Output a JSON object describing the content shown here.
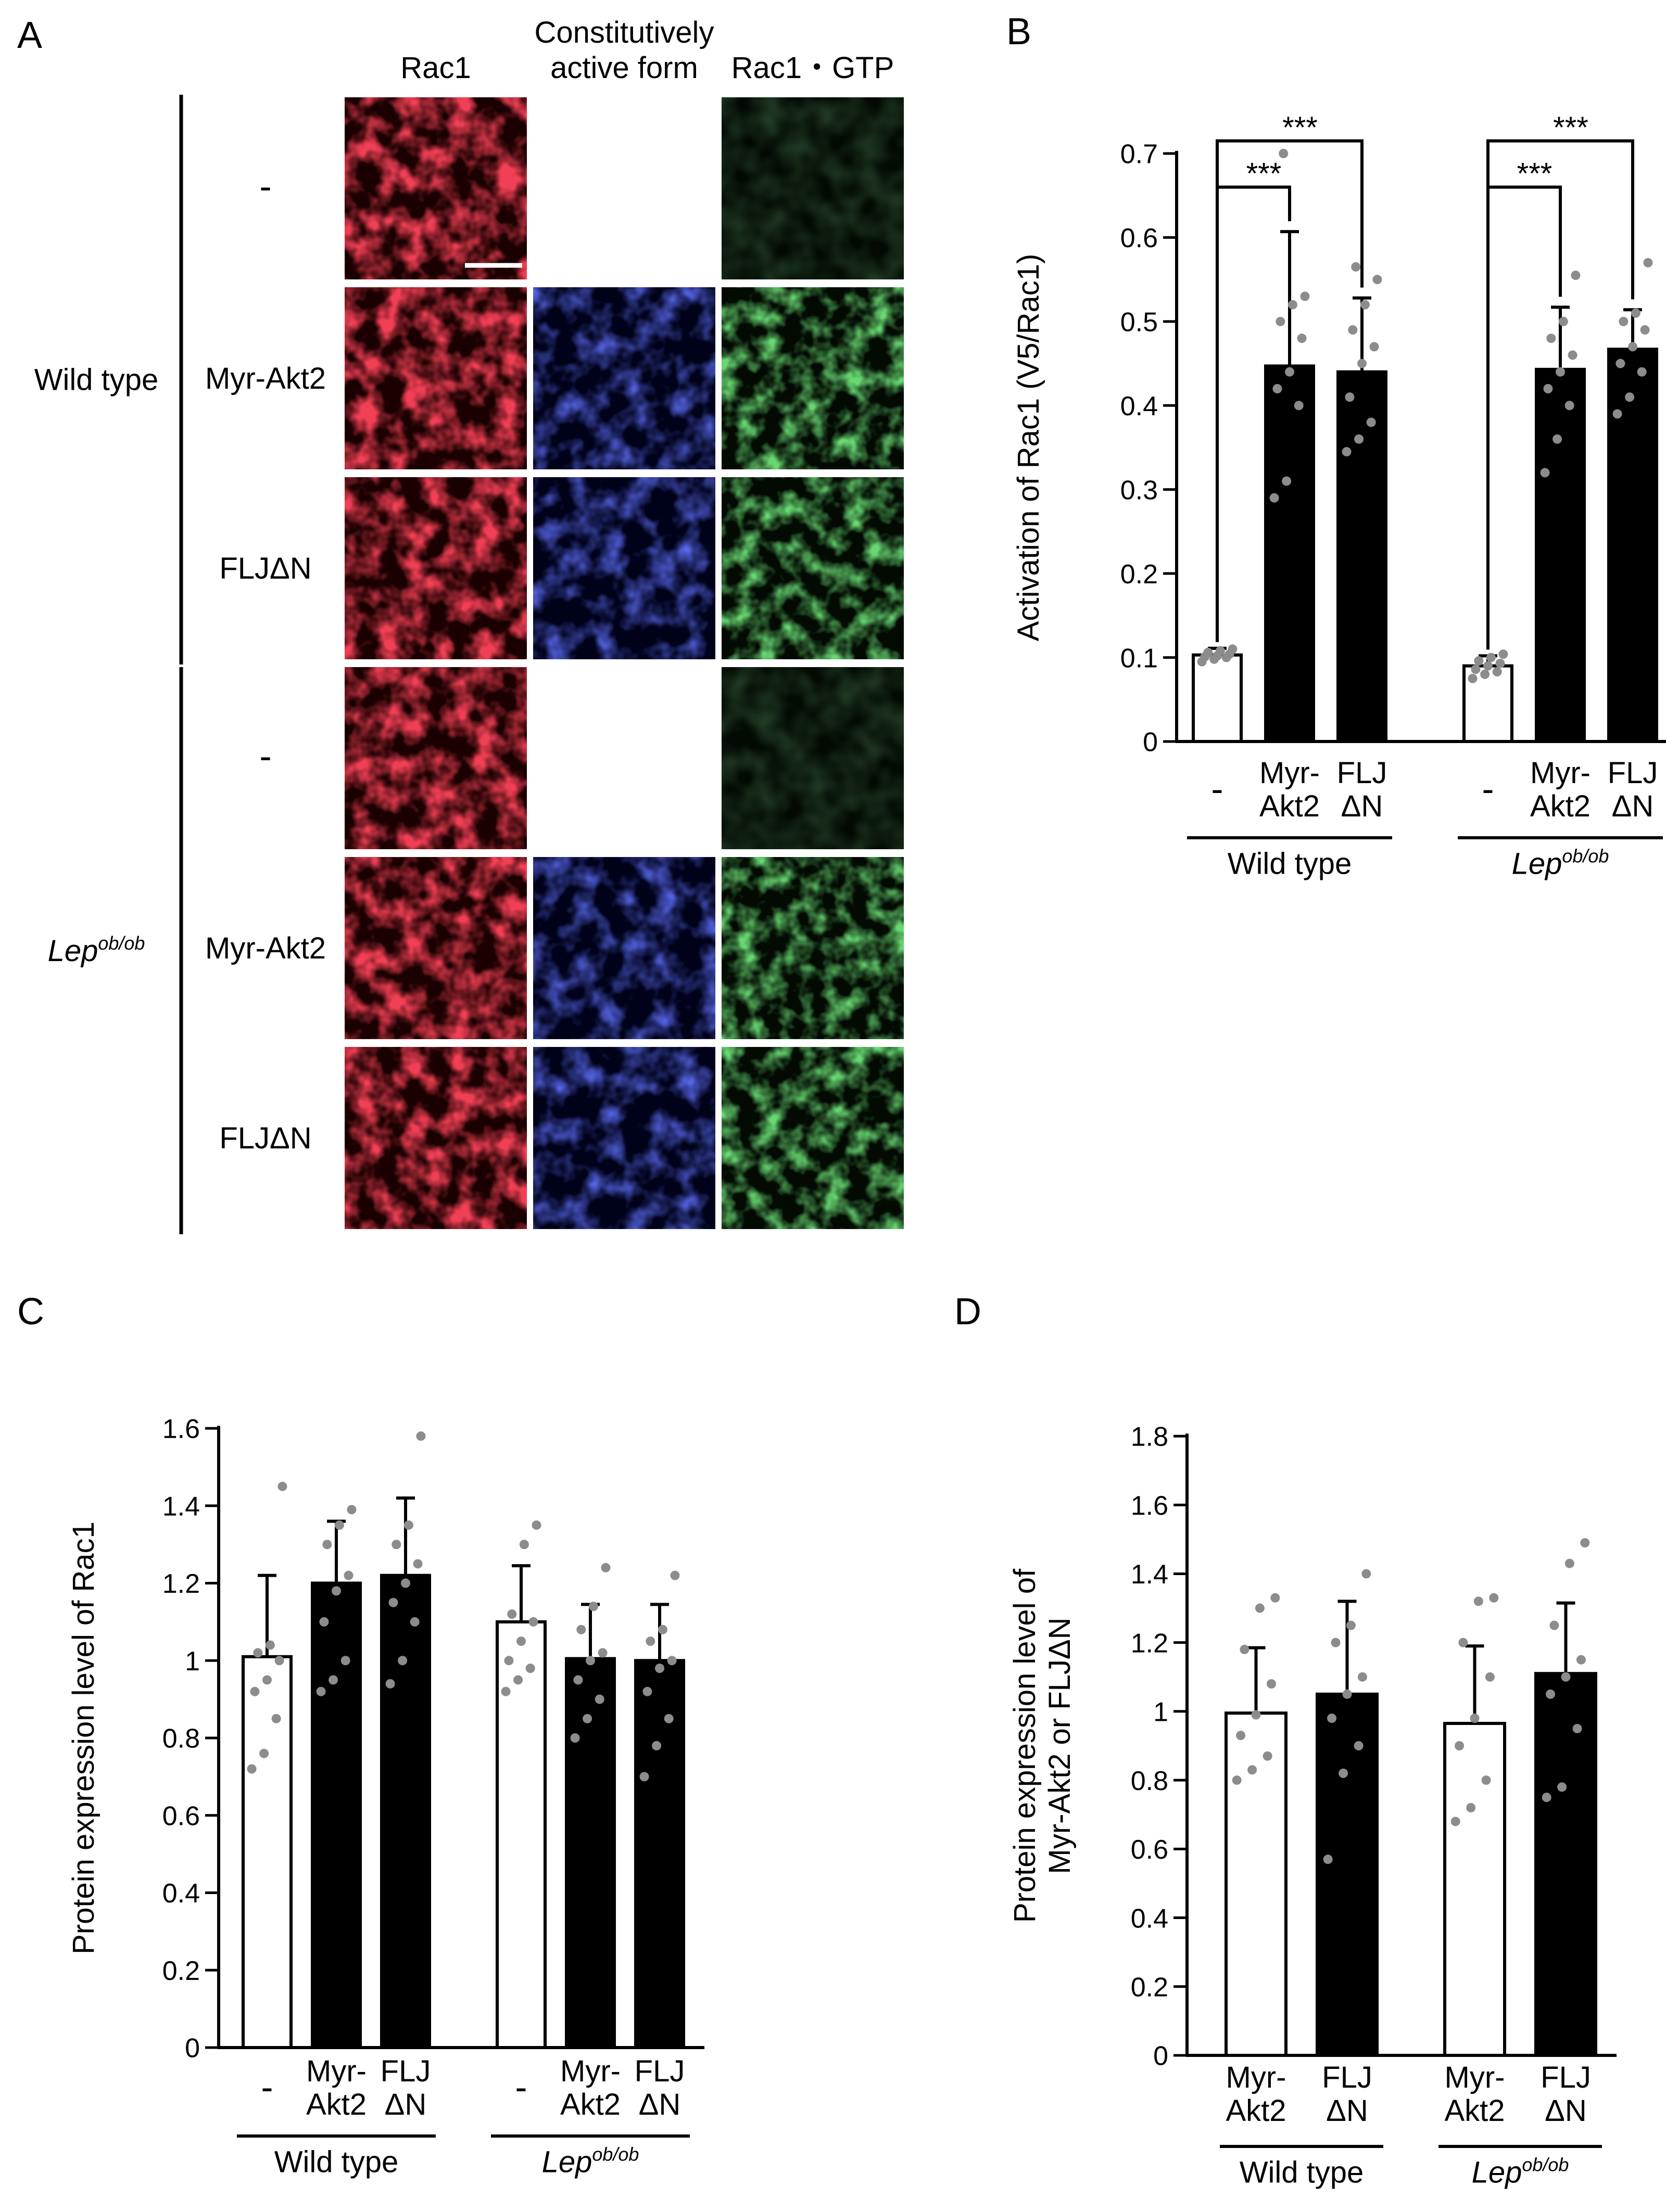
{
  "panel_a": {
    "letter": "A",
    "col_headers": [
      "Rac1",
      "Constitutively\nactive form",
      "Rac1・GTP"
    ],
    "groups": [
      {
        "label": "Wild type",
        "italic": false,
        "rows": [
          {
            "label": "-",
            "channels": [
              true,
              false,
              true
            ],
            "green_active": false
          },
          {
            "label": "Myr-Akt2",
            "channels": [
              true,
              true,
              true
            ],
            "green_active": true
          },
          {
            "label": "FLJΔN",
            "channels": [
              true,
              true,
              true
            ],
            "green_active": true
          }
        ]
      },
      {
        "label": "Lep",
        "label_sup": "ob/ob",
        "italic": true,
        "rows": [
          {
            "label": "-",
            "channels": [
              true,
              false,
              true
            ],
            "green_active": false
          },
          {
            "label": "Myr-Akt2",
            "channels": [
              true,
              true,
              true
            ],
            "green_active": true
          },
          {
            "label": "FLJΔN",
            "channels": [
              true,
              true,
              true
            ],
            "green_active": true
          }
        ]
      }
    ],
    "channel_colors": {
      "red": "#e0121c",
      "blue": "#1a24d8",
      "green": "#22b02a"
    }
  },
  "chart_data": [
    {
      "panel": "B",
      "type": "bar",
      "ylabel": "Activation of Rac1 (V5/Rac1)",
      "ylim": [
        0,
        0.7
      ],
      "yticks": [
        0,
        0.1,
        0.2,
        0.3,
        0.4,
        0.5,
        0.6,
        0.7
      ],
      "ytick_labels": [
        "0",
        "0.1",
        "0.2",
        "0.3",
        "0.4",
        "0.5",
        "0.6",
        "0.7"
      ],
      "bars": [
        {
          "label": "-",
          "value": 0.103,
          "err": 0.008,
          "fill": "white",
          "points": [
            0.095,
            0.098,
            0.1,
            0.101,
            0.102,
            0.104,
            0.106,
            0.108,
            0.11
          ]
        },
        {
          "label": "Myr-\nAkt2",
          "value": 0.447,
          "err": 0.16,
          "fill": "black",
          "points": [
            0.29,
            0.31,
            0.4,
            0.42,
            0.44,
            0.48,
            0.5,
            0.52,
            0.53,
            0.7
          ]
        },
        {
          "label": "FLJ\nΔN",
          "value": 0.44,
          "err": 0.088,
          "fill": "black",
          "points": [
            0.345,
            0.36,
            0.38,
            0.41,
            0.45,
            0.47,
            0.49,
            0.52,
            0.55,
            0.565
          ]
        },
        {
          "label": "-",
          "value": 0.09,
          "err": 0.012,
          "fill": "white",
          "points": [
            0.075,
            0.08,
            0.083,
            0.086,
            0.09,
            0.093,
            0.096,
            0.1,
            0.104
          ]
        },
        {
          "label": "Myr-\nAkt2",
          "value": 0.443,
          "err": 0.074,
          "fill": "black",
          "points": [
            0.32,
            0.36,
            0.4,
            0.42,
            0.44,
            0.46,
            0.48,
            0.5,
            0.555
          ]
        },
        {
          "label": "FLJ\nΔN",
          "value": 0.467,
          "err": 0.047,
          "fill": "black",
          "points": [
            0.39,
            0.41,
            0.44,
            0.45,
            0.47,
            0.49,
            0.5,
            0.51,
            0.57
          ]
        }
      ],
      "groups": [
        {
          "label": "Wild type",
          "italic": false,
          "bars": [
            0,
            1,
            2
          ]
        },
        {
          "label": "Lep",
          "sup": "ob/ob",
          "italic": true,
          "bars": [
            3,
            4,
            5
          ]
        }
      ],
      "significance": [
        {
          "from": 0,
          "to": 1,
          "text": "***",
          "y": 0.66
        },
        {
          "from": 0,
          "to": 2,
          "text": "***",
          "y": 0.715
        },
        {
          "from": 3,
          "to": 4,
          "text": "***",
          "y": 0.66
        },
        {
          "from": 3,
          "to": 5,
          "text": "***",
          "y": 0.715
        }
      ]
    },
    {
      "panel": "C",
      "type": "bar",
      "ylabel": "Protein expression level of Rac1",
      "ylim": [
        0,
        1.6
      ],
      "yticks": [
        0,
        0.2,
        0.4,
        0.6,
        0.8,
        1,
        1.2,
        1.4,
        1.6
      ],
      "ytick_labels": [
        "0",
        "0.2",
        "0.4",
        "0.6",
        "0.8",
        "1",
        "1.2",
        "1.4",
        "1.6"
      ],
      "bars": [
        {
          "label": "-",
          "value": 1.01,
          "err": 0.21,
          "fill": "white",
          "points": [
            0.72,
            0.76,
            0.85,
            0.92,
            0.95,
            1.0,
            1.02,
            1.04,
            1.45
          ]
        },
        {
          "label": "Myr-\nAkt2",
          "value": 1.2,
          "err": 0.16,
          "fill": "black",
          "points": [
            0.92,
            0.95,
            1.0,
            1.1,
            1.18,
            1.22,
            1.3,
            1.35,
            1.39
          ]
        },
        {
          "label": "FLJ\nΔN",
          "value": 1.22,
          "err": 0.2,
          "fill": "black",
          "points": [
            0.94,
            1.0,
            1.1,
            1.15,
            1.2,
            1.25,
            1.3,
            1.35,
            1.58
          ]
        },
        {
          "label": "-",
          "value": 1.1,
          "err": 0.145,
          "fill": "white",
          "points": [
            0.92,
            0.95,
            0.98,
            1.0,
            1.05,
            1.1,
            1.12,
            1.3,
            1.35
          ]
        },
        {
          "label": "Myr-\nAkt2",
          "value": 1.005,
          "err": 0.14,
          "fill": "black",
          "points": [
            0.8,
            0.85,
            0.9,
            0.95,
            1.0,
            1.02,
            1.08,
            1.14,
            1.24
          ]
        },
        {
          "label": "FLJ\nΔN",
          "value": 1.0,
          "err": 0.145,
          "fill": "black",
          "points": [
            0.7,
            0.78,
            0.85,
            0.92,
            0.98,
            1.0,
            1.05,
            1.08,
            1.22
          ]
        }
      ],
      "groups": [
        {
          "label": "Wild type",
          "italic": false,
          "bars": [
            0,
            1,
            2
          ]
        },
        {
          "label": "Lep",
          "sup": "ob/ob",
          "italic": true,
          "bars": [
            3,
            4,
            5
          ]
        }
      ],
      "significance": []
    },
    {
      "panel": "D",
      "type": "bar",
      "ylabel": "Protein expression level of\nMyr-Akt2 or FLJΔN",
      "ylim": [
        0,
        1.8
      ],
      "yticks": [
        0,
        0.2,
        0.4,
        0.6,
        0.8,
        1,
        1.2,
        1.4,
        1.6,
        1.8
      ],
      "ytick_labels": [
        "0",
        "0.2",
        "0.4",
        "0.6",
        "0.8",
        "1",
        "1.2",
        "1.4",
        "1.6",
        "1.8"
      ],
      "bars": [
        {
          "label": "Myr-\nAkt2",
          "value": 0.995,
          "err": 0.19,
          "fill": "white",
          "points": [
            0.8,
            0.83,
            0.87,
            0.93,
            0.99,
            1.08,
            1.18,
            1.3,
            1.33
          ]
        },
        {
          "label": "FLJ\nΔN",
          "value": 1.05,
          "err": 0.27,
          "fill": "black",
          "points": [
            0.57,
            0.82,
            0.9,
            0.98,
            1.05,
            1.1,
            1.2,
            1.25,
            1.4
          ]
        },
        {
          "label": "Myr-\nAkt2",
          "value": 0.965,
          "err": 0.225,
          "fill": "white",
          "points": [
            0.68,
            0.72,
            0.8,
            0.9,
            0.98,
            1.1,
            1.2,
            1.32,
            1.33
          ]
        },
        {
          "label": "FLJ\nΔN",
          "value": 1.11,
          "err": 0.205,
          "fill": "black",
          "points": [
            0.75,
            0.78,
            0.95,
            1.05,
            1.1,
            1.15,
            1.25,
            1.43,
            1.49
          ]
        }
      ],
      "groups": [
        {
          "label": "Wild type",
          "italic": false,
          "bars": [
            0,
            1
          ]
        },
        {
          "label": "Lep",
          "sup": "ob/ob",
          "italic": true,
          "bars": [
            2,
            3
          ]
        }
      ],
      "significance": []
    }
  ]
}
